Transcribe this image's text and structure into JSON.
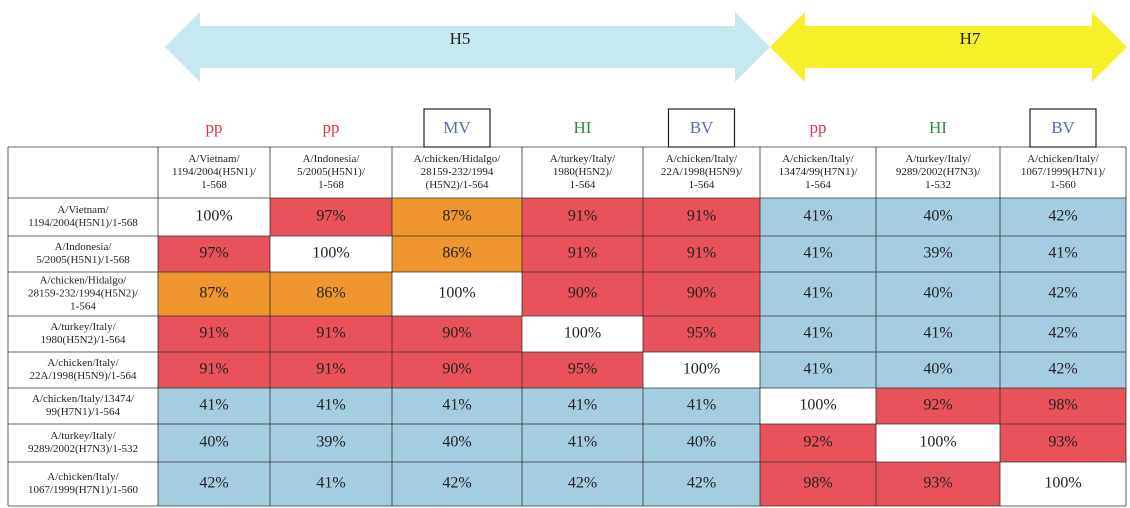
{
  "groups": [
    {
      "label": "H5",
      "color": "#c6e9ef"
    },
    {
      "label": "H7",
      "color": "#f5f02a"
    }
  ],
  "methods": [
    {
      "text": "pp",
      "color": "#e0314a",
      "boxed": false
    },
    {
      "text": "pp",
      "color": "#e0314a",
      "boxed": false
    },
    {
      "text": "MV",
      "color": "#5a6bb0",
      "boxed": true
    },
    {
      "text": "HI",
      "color": "#2e8b3a",
      "boxed": false
    },
    {
      "text": "BV",
      "color": "#5a6bb0",
      "boxed": true
    },
    {
      "text": "pp",
      "color": "#e0314a",
      "boxed": false
    },
    {
      "text": "HI",
      "color": "#2e8b3a",
      "boxed": false
    },
    {
      "text": "BV",
      "color": "#5a6bb0",
      "boxed": true
    }
  ],
  "table": {
    "columns": [
      [
        "A/Vietnam/",
        "1194/2004(H5N1)/",
        "1-568"
      ],
      [
        "A/Indonesia/",
        "5/2005(H5N1)/",
        "1-568"
      ],
      [
        "A/chicken/Hidalgo/",
        "28159-232/1994",
        "(H5N2)/1-564"
      ],
      [
        "A/turkey/Italy/",
        "1980(H5N2)/",
        "1-564"
      ],
      [
        "A/chicken/Italy/",
        "22A/1998(H5N9)/",
        "1-564"
      ],
      [
        "A/chicken/Italy/",
        "13474/99(H7N1)/",
        "1-564"
      ],
      [
        "A/turkey/Italy/",
        "9289/2002(H7N3)/",
        "1-532"
      ],
      [
        "A/chicken/Italy/",
        "1067/1999(H7N1)/",
        "1-560"
      ]
    ],
    "rows": [
      {
        "label": [
          "A/Vietnam/",
          "1194/2004(H5N1)/1-568"
        ],
        "values": [
          "100%",
          "97%",
          "87%",
          "91%",
          "91%",
          "41%",
          "40%",
          "42%"
        ],
        "colors": [
          "#ffffff",
          "#e8525a",
          "#f0962e",
          "#e8525a",
          "#e8525a",
          "#a5cde0",
          "#a5cde0",
          "#a5cde0"
        ]
      },
      {
        "label": [
          "A/Indonesia/",
          "5/2005(H5N1)/1-568"
        ],
        "values": [
          "97%",
          "100%",
          "86%",
          "91%",
          "91%",
          "41%",
          "39%",
          "41%"
        ],
        "colors": [
          "#e8525a",
          "#ffffff",
          "#f0962e",
          "#e8525a",
          "#e8525a",
          "#a5cde0",
          "#a5cde0",
          "#a5cde0"
        ]
      },
      {
        "label": [
          "A/chicken/Hidalgo/",
          "28159-232/1994(H5N2)/",
          "1-564"
        ],
        "values": [
          "87%",
          "86%",
          "100%",
          "90%",
          "90%",
          "41%",
          "40%",
          "42%"
        ],
        "colors": [
          "#f0962e",
          "#f0962e",
          "#ffffff",
          "#e8525a",
          "#e8525a",
          "#a5cde0",
          "#a5cde0",
          "#a5cde0"
        ]
      },
      {
        "label": [
          "A/turkey/Italy/",
          "1980(H5N2)/1-564"
        ],
        "values": [
          "91%",
          "91%",
          "90%",
          "100%",
          "95%",
          "41%",
          "41%",
          "42%"
        ],
        "colors": [
          "#e8525a",
          "#e8525a",
          "#e8525a",
          "#ffffff",
          "#e8525a",
          "#a5cde0",
          "#a5cde0",
          "#a5cde0"
        ]
      },
      {
        "label": [
          "A/chicken/Italy/",
          "22A/1998(H5N9)/1-564"
        ],
        "values": [
          "91%",
          "91%",
          "90%",
          "95%",
          "100%",
          "41%",
          "40%",
          "42%"
        ],
        "colors": [
          "#e8525a",
          "#e8525a",
          "#e8525a",
          "#e8525a",
          "#ffffff",
          "#a5cde0",
          "#a5cde0",
          "#a5cde0"
        ]
      },
      {
        "label": [
          "A/chicken/Italy/13474/",
          "99(H7N1)/1-564"
        ],
        "values": [
          "41%",
          "41%",
          "41%",
          "41%",
          "41%",
          "100%",
          "92%",
          "98%"
        ],
        "colors": [
          "#a5cde0",
          "#a5cde0",
          "#a5cde0",
          "#a5cde0",
          "#a5cde0",
          "#ffffff",
          "#e8525a",
          "#e8525a"
        ]
      },
      {
        "label": [
          "A/turkey/Italy/",
          "9289/2002(H7N3)/1-532"
        ],
        "values": [
          "40%",
          "39%",
          "40%",
          "41%",
          "40%",
          "92%",
          "100%",
          "93%"
        ],
        "colors": [
          "#a5cde0",
          "#a5cde0",
          "#a5cde0",
          "#a5cde0",
          "#a5cde0",
          "#e8525a",
          "#ffffff",
          "#e8525a"
        ]
      },
      {
        "label": [
          "A/chicken/Italy/",
          "1067/1999(H7N1)/1-560"
        ],
        "values": [
          "42%",
          "41%",
          "42%",
          "42%",
          "42%",
          "98%",
          "93%",
          "100%"
        ],
        "colors": [
          "#a5cde0",
          "#a5cde0",
          "#a5cde0",
          "#a5cde0",
          "#a5cde0",
          "#e8525a",
          "#e8525a",
          "#ffffff"
        ]
      }
    ]
  }
}
